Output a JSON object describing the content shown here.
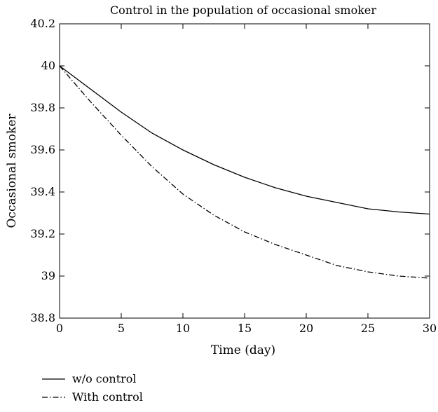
{
  "chart_data": {
    "type": "line",
    "title": "Control in the population of occasional smoker",
    "xlabel": "Time (day)",
    "ylabel": "Occasional smoker",
    "xlim": [
      0,
      30
    ],
    "ylim": [
      38.8,
      40.2
    ],
    "xticks": [
      0,
      5,
      10,
      15,
      20,
      25,
      30
    ],
    "yticks": [
      38.8,
      39,
      39.2,
      39.4,
      39.6,
      39.8,
      40,
      40.2
    ],
    "grid": false,
    "legend_position": "below plot, left",
    "series": [
      {
        "name": "w/o control",
        "line_style": "solid",
        "color": "#000000",
        "x": [
          0,
          2.5,
          5,
          7.5,
          10,
          12.5,
          15,
          17.5,
          20,
          22.5,
          25,
          27.5,
          30
        ],
        "y": [
          40.0,
          39.89,
          39.78,
          39.68,
          39.6,
          39.53,
          39.47,
          39.42,
          39.38,
          39.35,
          39.32,
          39.305,
          39.295
        ]
      },
      {
        "name": "With control",
        "line_style": "dash-dot",
        "color": "#000000",
        "x": [
          0,
          2.5,
          5,
          7.5,
          10,
          12.5,
          15,
          17.5,
          20,
          22.5,
          25,
          27.5,
          30
        ],
        "y": [
          40.0,
          39.83,
          39.67,
          39.52,
          39.39,
          39.29,
          39.21,
          39.15,
          39.1,
          39.05,
          39.02,
          39.0,
          38.99
        ]
      }
    ]
  }
}
